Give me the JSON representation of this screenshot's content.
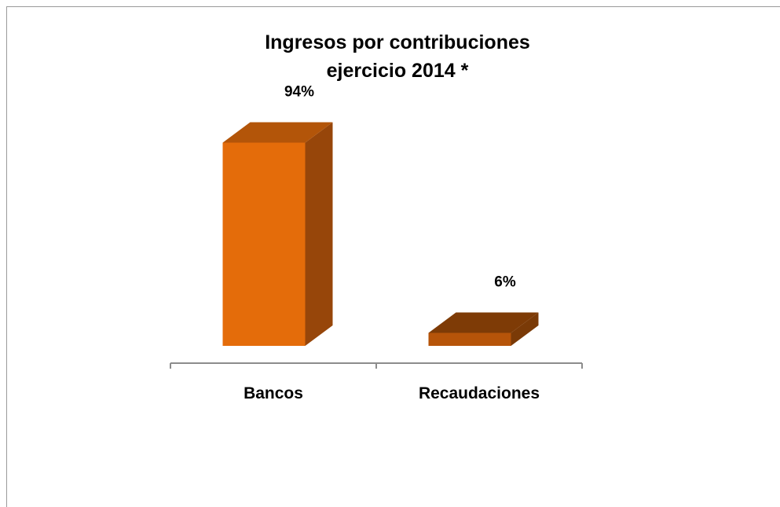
{
  "chart_data": {
    "type": "bar",
    "style": "3d-column",
    "title": "Ingresos por contribuciones ejercicio 2014 *",
    "title_lines": [
      "Ingresos por contribuciones",
      "ejercicio 2014 *"
    ],
    "categories": [
      "Bancos",
      "Recaudaciones"
    ],
    "values": [
      94,
      6
    ],
    "value_unit": "%",
    "data_labels": [
      "94%",
      "6%"
    ],
    "xlabel": "",
    "ylabel": "",
    "ylim": [
      0,
      100
    ],
    "grid": false,
    "legend": "none",
    "colors": {
      "front": [
        "#e46c0a",
        "#b65409"
      ],
      "side": [
        "#97460a",
        "#7a3a07"
      ],
      "top": [
        "#b35509",
        "#7e3b06"
      ],
      "axis": "#8c8c8c"
    }
  }
}
